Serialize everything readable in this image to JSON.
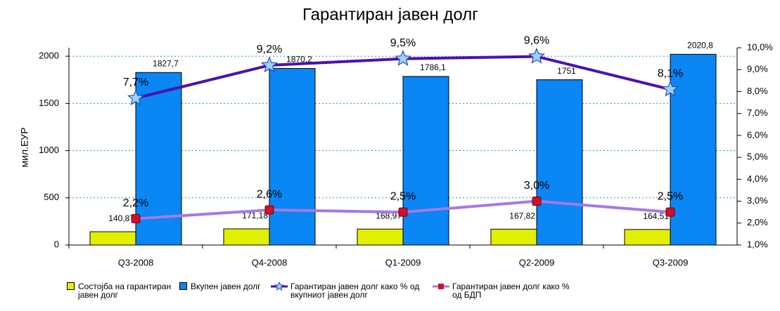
{
  "chart_data": {
    "type": "bar-line",
    "title": "Гарантиран јавен долг",
    "ylabel": "мил.ЕУР",
    "categories": [
      "Q3-2008",
      "Q4-2008",
      "Q1-2009",
      "Q2-2009",
      "Q3-2009"
    ],
    "ylim": [
      0,
      2090
    ],
    "yticks": [
      0,
      500,
      1000,
      1500,
      2000
    ],
    "y2lim": [
      1,
      10
    ],
    "y2ticks": [
      {
        "value": 1,
        "label": "1,0%"
      },
      {
        "value": 2,
        "label": "2,0%"
      },
      {
        "value": 3,
        "label": "3,0%"
      },
      {
        "value": 4,
        "label": "4,0%"
      },
      {
        "value": 5,
        "label": "5,0%"
      },
      {
        "value": 6,
        "label": "6,0%"
      },
      {
        "value": 7,
        "label": "7,0%"
      },
      {
        "value": 8,
        "label": "8,0%"
      },
      {
        "value": 9,
        "label": "9,0%"
      },
      {
        "value": 10,
        "label": "10,0%"
      }
    ],
    "grid": true,
    "series": [
      {
        "name": "Состојба на гарантиран јавен долг",
        "kind": "bar",
        "color": "#e2f000",
        "values": [
          140.87,
          171.18,
          168.97,
          167.82,
          164.51
        ],
        "value_labels": [
          "140,87",
          "171,18",
          "168,97",
          "167,82",
          "164,51"
        ]
      },
      {
        "name": "Вкупен јавен долг",
        "kind": "bar",
        "color": "#0a86f5",
        "values": [
          1827.7,
          1870.2,
          1786.1,
          1751,
          2020.8
        ],
        "value_labels": [
          "1827,7",
          "1870,2",
          "1786,1",
          "1751",
          "2020,8"
        ]
      },
      {
        "name": "Гарантиран јавен долг како % од вкупниот јавен долг",
        "kind": "line",
        "axis": "y2",
        "color": "#4a12b0",
        "values": [
          7.7,
          9.2,
          9.5,
          9.6,
          8.1
        ],
        "value_labels": [
          "7,7%",
          "9,2%",
          "9,5%",
          "9,6%",
          "8,1%"
        ]
      },
      {
        "name": "Гарантиран јавен долг како % од БДП",
        "kind": "line",
        "axis": "y2",
        "color": "#a47ae6",
        "values": [
          2.2,
          2.6,
          2.5,
          3.0,
          2.5
        ],
        "value_labels": [
          "2,2%",
          "2,6%",
          "2,5%",
          "3,0%",
          "2,5%"
        ]
      }
    ]
  }
}
